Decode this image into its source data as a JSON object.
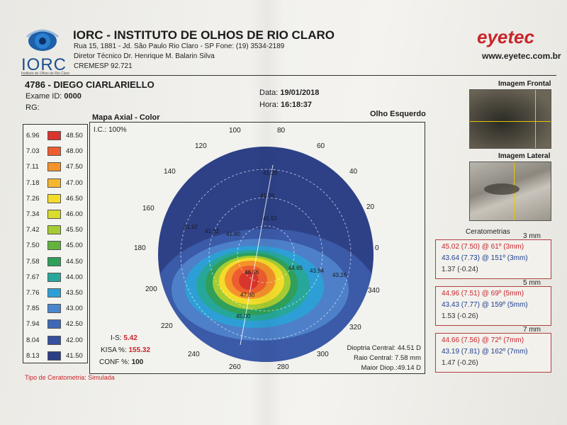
{
  "header": {
    "logo_text": "IORC",
    "logo_sub": "Instituto de Olhos de Rio Claro",
    "clinic_name": "IORC - INSTITUTO DE OLHOS DE RIO CLARO",
    "address_line": "Rua 15, 1881 - Jd. São Paulo  Rio Claro - SP  Fone: (19) 3534-2189",
    "director_line": "Diretor Técnico Dr. Henrique M. Balarin Silva",
    "cremesp_line": "CREMESP 92.721",
    "brand": "eyetec",
    "brand_url": "www.eyetec.com.br",
    "brand_color": "#c8252c"
  },
  "patient": {
    "name_line": "4786 - DIEGO CIARLARIELLO",
    "exam_label": "Exame ID:",
    "exam_value": "0000",
    "rg_label": "RG:",
    "date_label": "Data:",
    "date_value": "19/01/2018",
    "time_label": "Hora:",
    "time_value": "16:18:37"
  },
  "map": {
    "title": "Mapa Axial - Color",
    "eye_side": "Olho Esquerdo",
    "ic_label": "I.C.: 100%",
    "angle_labels": [
      "100",
      "80",
      "60",
      "40",
      "20",
      "0",
      "340",
      "320",
      "300",
      "280",
      "260",
      "240",
      "220",
      "200",
      "180",
      "160",
      "140",
      "120"
    ],
    "value_labels": [
      "41.29",
      "41.26",
      "41.51",
      "41.92",
      "41.82",
      "41.80",
      "46.56",
      "44.65",
      "43.94",
      "43.26",
      "47.80",
      "45.00"
    ]
  },
  "legend": [
    {
      "mm": "6.96",
      "d": "48.50",
      "color": "#d8352c"
    },
    {
      "mm": "7.03",
      "d": "48.00",
      "color": "#ee5d2f"
    },
    {
      "mm": "7.11",
      "d": "47.50",
      "color": "#f4922b"
    },
    {
      "mm": "7.18",
      "d": "47.00",
      "color": "#f6b62f"
    },
    {
      "mm": "7.26",
      "d": "46.50",
      "color": "#f4dd2a"
    },
    {
      "mm": "7.34",
      "d": "46.00",
      "color": "#d9dc2c"
    },
    {
      "mm": "7.42",
      "d": "45.50",
      "color": "#a6cc33"
    },
    {
      "mm": "7.50",
      "d": "45.00",
      "color": "#62b43d"
    },
    {
      "mm": "7.58",
      "d": "44.50",
      "color": "#2f9f5a"
    },
    {
      "mm": "7.67",
      "d": "44.00",
      "color": "#27a79a"
    },
    {
      "mm": "7.76",
      "d": "43.50",
      "color": "#2e9fd6"
    },
    {
      "mm": "7.85",
      "d": "43.00",
      "color": "#4a86cf"
    },
    {
      "mm": "7.94",
      "d": "42.50",
      "color": "#3e69b7"
    },
    {
      "mm": "8.04",
      "d": "42.00",
      "color": "#34509e"
    },
    {
      "mm": "8.13",
      "d": "41.50",
      "color": "#2b3f85"
    }
  ],
  "stats": {
    "is_label": "I-S:",
    "is_value": "5.42",
    "kisa_label": "KISA %:",
    "kisa_value": "155.32",
    "conf_label": "CONF %:",
    "conf_value": "100"
  },
  "dioptrias": {
    "central": "Dioptria Central: 44.51 D",
    "raio": "Raio Central: 7.58 mm",
    "maior": "Maior Diop.:49.14 D"
  },
  "tipo_ceratometria": "Tipo de Ceratometria: Simulada",
  "images": {
    "frontal_title": "Imagem Frontal",
    "lateral_title": "Imagem Lateral"
  },
  "ceratometrias": {
    "title": "Ceratometrias",
    "groups": [
      {
        "mm_label": "3 mm",
        "k1": "45.02 (7.50) @ 61º (3mm)",
        "k2": "43.64 (7.73) @ 151º (3mm)",
        "cyl": "1.37 (-0.24)"
      },
      {
        "mm_label": "5 mm",
        "k1": "44.96 (7.51) @ 69º (5mm)",
        "k2": "43.43 (7.77) @ 159º (5mm)",
        "cyl": "1.53 (-0.26)"
      },
      {
        "mm_label": "7 mm",
        "k1": "44.66 (7.56) @ 72º (7mm)",
        "k2": "43.19 (7.81) @ 162º (7mm)",
        "cyl": "1.47 (-0.26)"
      }
    ]
  }
}
